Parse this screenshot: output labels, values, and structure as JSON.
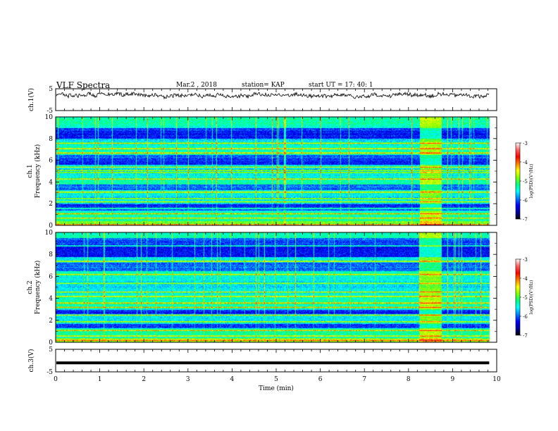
{
  "header": {
    "title": "VLF Spectra",
    "date": "Mar.2 , 2018",
    "station": "station= KAP",
    "start": "start UT = 17: 40: 1"
  },
  "chart_data": [
    {
      "type": "line",
      "panel": "ch1-waveform",
      "ylabel": "ch.1(V)",
      "yticks": [
        "5",
        "-5"
      ],
      "ylim": [
        -5,
        5
      ],
      "xlim": [
        0,
        10
      ],
      "trace": "noisy waveform centred near +2 V, amplitude about ±1 V, ending at 9.8 min"
    },
    {
      "type": "heatmap",
      "panel": "ch1-spectrogram",
      "ylabel": "ch.1\nFrequency (kHz)",
      "yticks": [
        "0",
        "2",
        "4",
        "6",
        "8",
        "10"
      ],
      "ylim": [
        0,
        10
      ],
      "xlim": [
        0,
        10
      ],
      "colorbar": {
        "label": "log(PSD)(V²/Hz)",
        "ticks": [
          "-3",
          "-4",
          "-5",
          "-6",
          "-7"
        ],
        "range": [
          -7,
          -3
        ]
      },
      "strong_bands_khz": [
        0.1,
        0.7,
        1.1,
        1.6,
        2.2,
        2.5,
        3.1,
        4.3,
        4.9,
        5.1,
        5.4,
        6.7,
        7.1,
        7.6
      ],
      "quiet_bands_khz": [
        [
          5.6,
          6.5
        ],
        [
          3.3,
          3.8
        ],
        [
          1.4,
          2.0
        ],
        [
          8.0,
          9.0
        ]
      ],
      "broadband_burst_min": [
        8.25,
        8.75
      ]
    },
    {
      "type": "heatmap",
      "panel": "ch2-spectrogram",
      "ylabel": "ch.2\nFrequency (kHz)",
      "yticks": [
        "0",
        "2",
        "4",
        "6",
        "8",
        "10"
      ],
      "ylim": [
        0,
        10
      ],
      "xlim": [
        0,
        10
      ],
      "colorbar": {
        "label": "log(PSD)(V²/Hz)",
        "ticks": [
          "-3",
          "-4",
          "-5",
          "-6",
          "-7"
        ],
        "range": [
          -7,
          -3
        ]
      },
      "strong_bands_khz": [
        0.2,
        0.6,
        1.1,
        1.9,
        2.5,
        3.2,
        3.6,
        4.2,
        4.6,
        5.4,
        6.2,
        7.4,
        8.8
      ],
      "quiet_bands_khz": [
        [
          6.5,
          7.3
        ],
        [
          2.6,
          3.0
        ],
        [
          1.3,
          1.7
        ],
        [
          7.8,
          9.5
        ]
      ],
      "broadband_burst_min": [
        8.25,
        8.75
      ]
    },
    {
      "type": "line",
      "panel": "ch3-waveform",
      "ylabel": "ch.3(V)",
      "yticks": [
        "5",
        "-5"
      ],
      "ylim": [
        -5,
        5
      ],
      "xlim": [
        0,
        10
      ],
      "flat_level": -1
    }
  ],
  "xaxis": {
    "label": "Time (min)",
    "ticks": [
      "0",
      "1",
      "2",
      "3",
      "4",
      "5",
      "6",
      "7",
      "8",
      "9",
      "10"
    ],
    "range": [
      0,
      10
    ],
    "data_end": 9.83
  },
  "colors": {
    "colormap": [
      "#000000",
      "#0000a0",
      "#0000ff",
      "#0080ff",
      "#00ffff",
      "#00ff80",
      "#80ff00",
      "#ffff00",
      "#ff8000",
      "#ff0000",
      "#ff6060",
      "#ffffff"
    ]
  }
}
